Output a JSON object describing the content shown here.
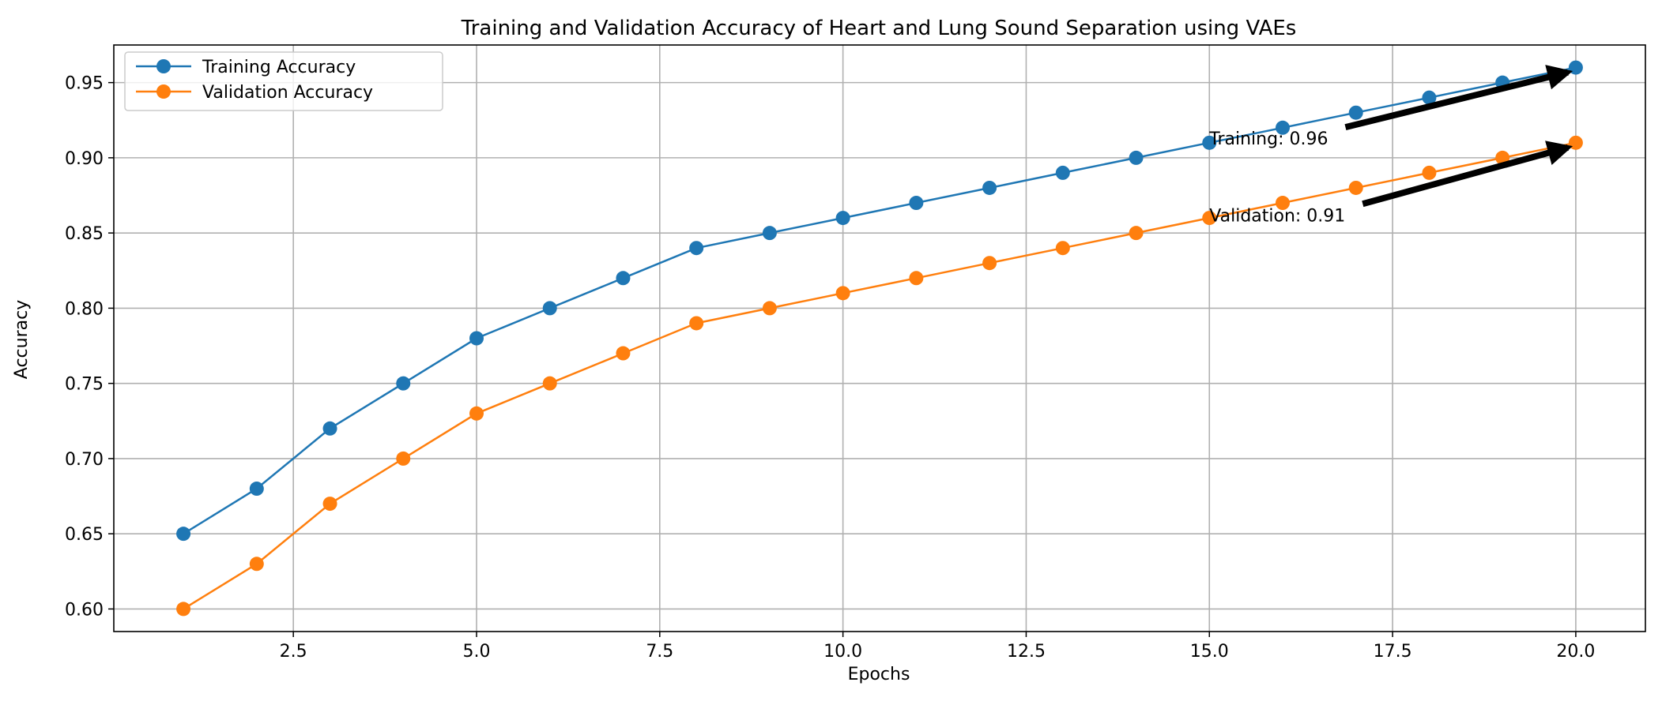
{
  "chart_data": {
    "type": "line",
    "title": "Training and Validation Accuracy of Heart and Lung Sound Separation using VAEs",
    "xlabel": "Epochs",
    "ylabel": "Accuracy",
    "xlim": [
      0.05,
      20.95
    ],
    "ylim": [
      0.585,
      0.975
    ],
    "xticks": [
      2.5,
      5.0,
      7.5,
      10.0,
      12.5,
      15.0,
      17.5,
      20.0
    ],
    "xtick_labels": [
      "2.5",
      "5.0",
      "7.5",
      "10.0",
      "12.5",
      "15.0",
      "17.5",
      "20.0"
    ],
    "yticks": [
      0.6,
      0.65,
      0.7,
      0.75,
      0.8,
      0.85,
      0.9,
      0.95
    ],
    "ytick_labels": [
      "0.60",
      "0.65",
      "0.70",
      "0.75",
      "0.80",
      "0.85",
      "0.90",
      "0.95"
    ],
    "grid": true,
    "legend_position": "top-left",
    "x": [
      1,
      2,
      3,
      4,
      5,
      6,
      7,
      8,
      9,
      10,
      11,
      12,
      13,
      14,
      15,
      16,
      17,
      18,
      19,
      20
    ],
    "series": [
      {
        "name": "Training Accuracy",
        "color": "#1f77b4",
        "values": [
          0.65,
          0.68,
          0.72,
          0.75,
          0.78,
          0.8,
          0.82,
          0.84,
          0.85,
          0.86,
          0.87,
          0.88,
          0.89,
          0.9,
          0.91,
          0.92,
          0.93,
          0.94,
          0.95,
          0.96
        ]
      },
      {
        "name": "Validation Accuracy",
        "color": "#ff7f0e",
        "values": [
          0.6,
          0.63,
          0.67,
          0.7,
          0.73,
          0.75,
          0.77,
          0.79,
          0.8,
          0.81,
          0.82,
          0.83,
          0.84,
          0.85,
          0.86,
          0.87,
          0.88,
          0.89,
          0.9,
          0.91
        ]
      }
    ],
    "annotations": [
      {
        "text": "Training: 0.96",
        "xy": [
          20,
          0.96
        ],
        "xytext": [
          15,
          0.913
        ]
      },
      {
        "text": "Validation: 0.91",
        "xy": [
          20,
          0.91
        ],
        "xytext": [
          15,
          0.862
        ]
      }
    ]
  }
}
